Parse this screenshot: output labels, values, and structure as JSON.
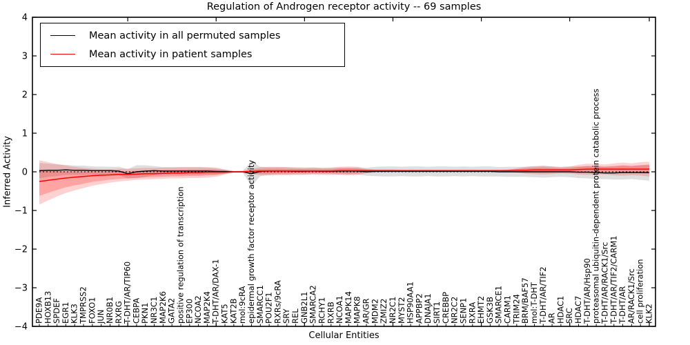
{
  "chart_data": {
    "type": "line",
    "title": "Regulation of Androgen receptor activity -- 69 samples",
    "xlabel": "Cellular Entities",
    "ylabel": "Inferred Activity",
    "ylim": [
      -4,
      4
    ],
    "grid": false,
    "legend_position": "upper left",
    "ytick_values": [
      4,
      3,
      2,
      1,
      0,
      -1,
      -2,
      -3,
      -4
    ],
    "ytick_labels": [
      "4",
      "3",
      "2",
      "1",
      "0",
      "−1",
      "−2",
      "−3",
      "−4"
    ],
    "zero_line": {
      "y": 0,
      "style": "dashed",
      "color": "#000000"
    },
    "categories": [
      "PDE9A",
      "HOXB13",
      "SPDEF",
      "EGR1",
      "KLK3",
      "TMPRSS2",
      "FOXO1",
      "JUN",
      "NR0B1",
      "RXRG",
      "T-DHT/AR/TIP60",
      "CEBPA",
      "PKN1",
      "NR3C1",
      "MAP2K6",
      "GATA2",
      "positive regulation of transcription",
      "EP300",
      "NCOA2",
      "MAP2K4",
      "T-DHT/AR/DAX-1",
      "KAT5",
      "KAT2B",
      "mol:9cRA",
      "epidermal growth factor receptor activity",
      "SMARCC1",
      "POU2F1",
      "RXRs/9cRA",
      "SRY",
      "REL",
      "GNB2L1",
      "SMARCA2",
      "RCHY1",
      "RXRB",
      "NCOA1",
      "MAPK14",
      "MAPK8",
      "AR/GR",
      "MDM2",
      "ZMIZ2",
      "NR2C1",
      "MYST2",
      "HSP90AA1",
      "APPBP2",
      "DNAJA1",
      "SIRT1",
      "CREBBP",
      "NR2C2",
      "SENP1",
      "RXRA",
      "EHMT2",
      "GSK3B",
      "SMARCE1",
      "CARM1",
      "TRIM24",
      "BRM/BAF57",
      "mol:T-DHT",
      "T-DHT/AR/TIF2",
      "AR",
      "HDAC1",
      "SRC",
      "HDAC7",
      "T-DHT/AR/Hsp90",
      "proteasomal ubiquitin-dependent protein catabolic process",
      "T-DHT/AR/RACK1/Src",
      "T-DHT/AR/TIF2/CARM1",
      "T-DHT/AR",
      "AR/RACK1/Src",
      "cell proliferation",
      "KLK2"
    ],
    "series": [
      {
        "name": "Mean activity in all permuted samples",
        "color": "#000000",
        "values": [
          0.03,
          0.04,
          0.04,
          0.05,
          0.04,
          0.04,
          0.03,
          0.03,
          0.03,
          0.02,
          -0.05,
          0.0,
          0.02,
          0.03,
          0.02,
          0.02,
          0.02,
          0.02,
          0.02,
          0.02,
          0.01,
          0.01,
          0.0,
          0.0,
          -0.05,
          0.01,
          0.02,
          0.02,
          0.02,
          0.01,
          0.01,
          0.02,
          0.01,
          0.01,
          0.02,
          0.02,
          0.02,
          0.0,
          0.01,
          0.01,
          0.01,
          0.01,
          0.01,
          0.01,
          0.01,
          0.01,
          0.01,
          0.01,
          0.01,
          0.01,
          0.01,
          0.01,
          0.0,
          0.0,
          0.0,
          0.0,
          0.0,
          0.0,
          0.0,
          0.0,
          0.0,
          -0.01,
          -0.01,
          -0.02,
          -0.03,
          -0.03,
          -0.02,
          -0.02,
          -0.02,
          -0.02
        ]
      },
      {
        "name": "Mean activity in patient samples",
        "color": "#ff0000",
        "values": [
          -0.25,
          -0.22,
          -0.19,
          -0.16,
          -0.14,
          -0.12,
          -0.1,
          -0.09,
          -0.08,
          -0.07,
          -0.07,
          -0.06,
          -0.05,
          -0.05,
          -0.04,
          -0.03,
          -0.03,
          -0.02,
          -0.02,
          -0.01,
          -0.01,
          -0.01,
          0.0,
          0.0,
          0.01,
          0.02,
          0.02,
          0.02,
          0.02,
          0.02,
          0.02,
          0.02,
          0.02,
          0.02,
          0.03,
          0.03,
          0.03,
          0.03,
          0.03,
          0.03,
          0.03,
          0.03,
          0.03,
          0.03,
          0.03,
          0.03,
          0.03,
          0.03,
          0.03,
          0.03,
          0.03,
          0.03,
          0.03,
          0.03,
          0.04,
          0.04,
          0.05,
          0.05,
          0.05,
          0.05,
          0.05,
          0.06,
          0.07,
          0.07,
          0.07,
          0.07,
          0.07,
          0.07,
          0.07,
          0.07
        ]
      }
    ],
    "bands": {
      "permuted_gray": {
        "color": "#808080",
        "opacity": 0.25,
        "center_series": 0,
        "halfwidth": [
          0.2,
          0.17,
          0.15,
          0.13,
          0.12,
          0.12,
          0.11,
          0.11,
          0.1,
          0.11,
          0.12,
          0.17,
          0.15,
          0.12,
          0.1,
          0.1,
          0.1,
          0.1,
          0.1,
          0.09,
          0.08,
          0.05,
          0.02,
          0.02,
          0.32,
          0.12,
          0.1,
          0.1,
          0.1,
          0.09,
          0.09,
          0.09,
          0.09,
          0.09,
          0.09,
          0.09,
          0.09,
          0.1,
          0.12,
          0.13,
          0.13,
          0.12,
          0.13,
          0.13,
          0.12,
          0.13,
          0.13,
          0.12,
          0.13,
          0.12,
          0.13,
          0.13,
          0.12,
          0.13,
          0.13,
          0.13,
          0.14,
          0.15,
          0.14,
          0.13,
          0.14,
          0.15,
          0.16,
          0.17,
          0.16,
          0.17,
          0.18,
          0.17,
          0.19,
          0.21
        ]
      },
      "patient_red": {
        "color": "#ff0000",
        "opacity": 0.18,
        "upper": [
          0.3,
          0.25,
          0.2,
          0.16,
          0.13,
          0.1,
          0.08,
          0.07,
          0.07,
          0.08,
          0.08,
          0.09,
          0.1,
          0.1,
          0.11,
          0.11,
          0.12,
          0.12,
          0.12,
          0.12,
          0.11,
          0.06,
          0.02,
          0.03,
          0.08,
          0.12,
          0.13,
          0.13,
          0.12,
          0.12,
          0.11,
          0.11,
          0.1,
          0.11,
          0.13,
          0.14,
          0.13,
          0.08,
          0.06,
          0.06,
          0.06,
          0.05,
          0.05,
          0.05,
          0.05,
          0.05,
          0.05,
          0.05,
          0.05,
          0.05,
          0.05,
          0.05,
          0.05,
          0.06,
          0.09,
          0.13,
          0.15,
          0.16,
          0.14,
          0.12,
          0.14,
          0.18,
          0.21,
          0.2,
          0.19,
          0.22,
          0.24,
          0.22,
          0.25,
          0.26
        ],
        "lower": [
          -0.85,
          -0.74,
          -0.64,
          -0.55,
          -0.48,
          -0.42,
          -0.36,
          -0.32,
          -0.28,
          -0.25,
          -0.23,
          -0.21,
          -0.2,
          -0.19,
          -0.18,
          -0.17,
          -0.17,
          -0.16,
          -0.16,
          -0.15,
          -0.13,
          -0.07,
          -0.02,
          -0.02,
          -0.06,
          -0.09,
          -0.09,
          -0.08,
          -0.08,
          -0.07,
          -0.07,
          -0.06,
          -0.06,
          -0.06,
          -0.08,
          -0.09,
          -0.08,
          -0.04,
          -0.01,
          0.0,
          0.0,
          0.01,
          0.01,
          0.01,
          0.01,
          0.01,
          0.01,
          0.01,
          0.01,
          0.01,
          0.01,
          0.01,
          0.01,
          0.0,
          -0.02,
          -0.05,
          -0.06,
          -0.07,
          -0.06,
          -0.04,
          -0.05,
          -0.07,
          -0.08,
          -0.07,
          -0.07,
          -0.09,
          -0.1,
          -0.09,
          -0.1,
          -0.12
        ]
      }
    }
  }
}
